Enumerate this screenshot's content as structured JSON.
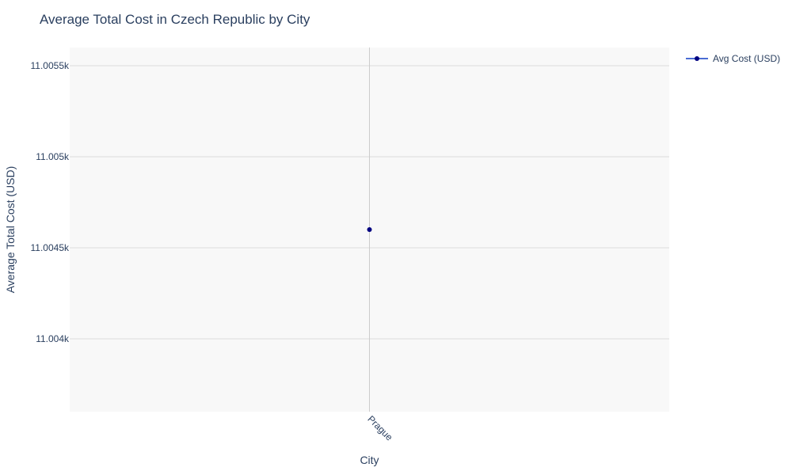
{
  "chart_data": {
    "type": "line",
    "title": "Average Total Cost in Czech Republic by City",
    "xlabel": "City",
    "ylabel": "Average Total Cost (USD)",
    "categories": [
      "Prague"
    ],
    "series": [
      {
        "name": "Avg Cost (USD)",
        "values": [
          11004.6
        ]
      }
    ],
    "ylim": [
      11003.6,
      11005.6
    ],
    "y_ticks": [
      11004,
      11004.5,
      11005,
      11005.5
    ],
    "y_tick_labels": [
      "11.004k",
      "11.0045k",
      "11.005k",
      "11.0055k"
    ],
    "grid": true,
    "legend_position": "top-right",
    "colors": {
      "line": "#4a6cd4",
      "marker": "#000080",
      "plot_background": "#f8f8f8",
      "grid": "#dddddd",
      "text": "#2a3f5f"
    }
  }
}
